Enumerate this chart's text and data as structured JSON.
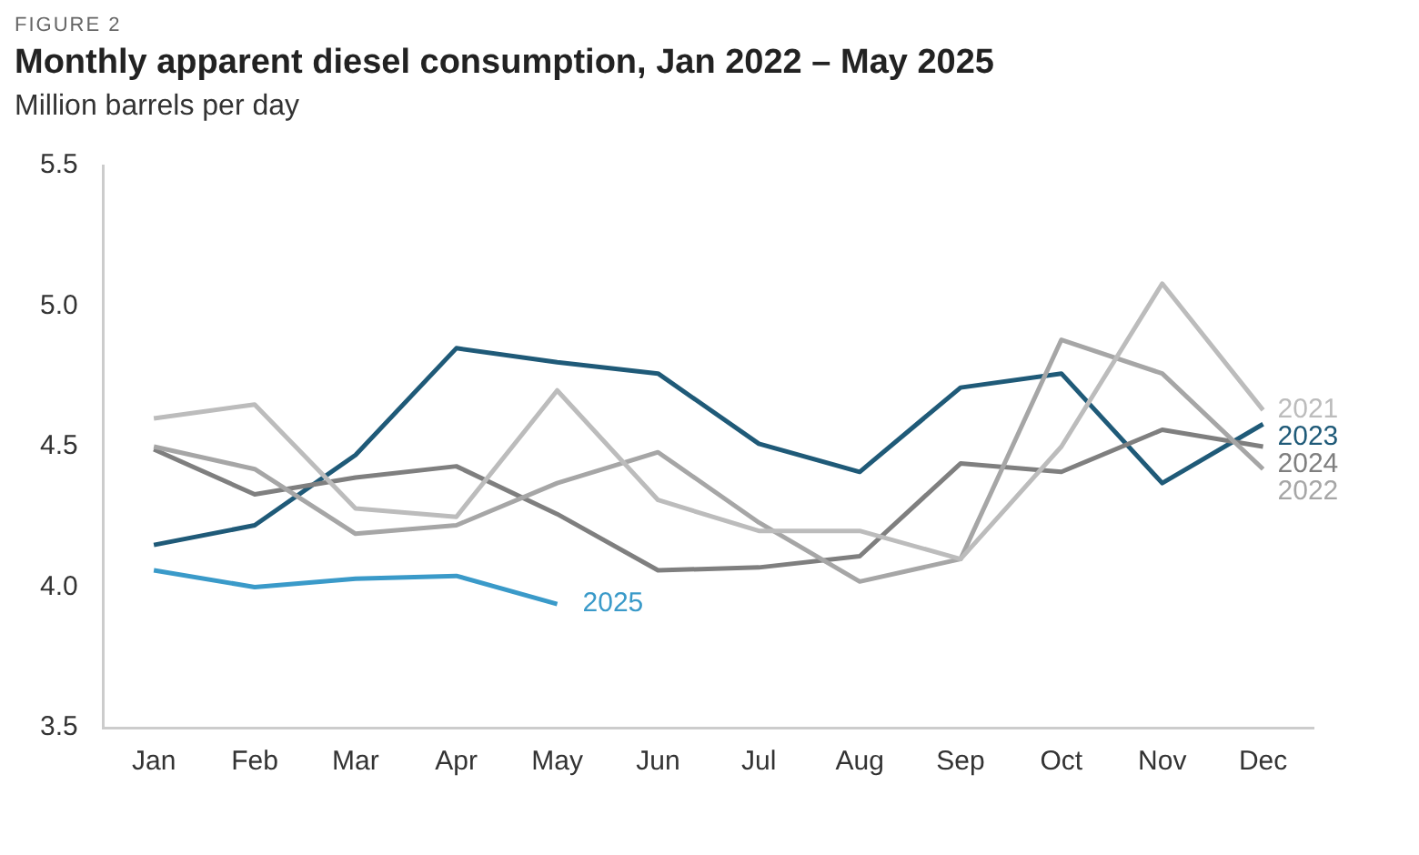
{
  "chart_data": {
    "type": "line",
    "title": "Monthly apparent diesel consumption, Jan 2022 – May 2025",
    "ylabel": "Million barrels per day",
    "annotations": [
      "FIGURE 2"
    ],
    "categories": [
      "Jan",
      "Feb",
      "Mar",
      "Apr",
      "May",
      "Jun",
      "Jul",
      "Aug",
      "Sep",
      "Oct",
      "Nov",
      "Dec"
    ],
    "series": [
      {
        "name": "2021",
        "color": "#bcbcbc",
        "values": [
          4.6,
          4.65,
          4.28,
          4.25,
          4.7,
          4.31,
          4.2,
          4.2,
          4.1,
          4.5,
          5.08,
          4.63
        ]
      },
      {
        "name": "2022",
        "color": "#a6a6a6",
        "values": [
          4.5,
          4.42,
          4.19,
          4.22,
          4.37,
          4.48,
          4.23,
          4.02,
          4.1,
          4.88,
          4.76,
          4.42
        ]
      },
      {
        "name": "2024",
        "color": "#7f7f7f",
        "values": [
          4.49,
          4.33,
          4.39,
          4.43,
          4.26,
          4.06,
          4.07,
          4.11,
          4.44,
          4.41,
          4.56,
          4.5
        ]
      },
      {
        "name": "2023",
        "color": "#1f5a78",
        "values": [
          4.15,
          4.22,
          4.47,
          4.85,
          4.8,
          4.76,
          4.51,
          4.41,
          4.71,
          4.76,
          4.37,
          4.58
        ]
      },
      {
        "name": "2025",
        "color": "#3a9ac9",
        "values": [
          4.06,
          4.0,
          4.03,
          4.04,
          3.94,
          null,
          null,
          null,
          null,
          null,
          null,
          null
        ]
      }
    ],
    "ylim": [
      3.5,
      5.5
    ],
    "yticks": [
      {
        "value": 3.5,
        "label": "3.5"
      },
      {
        "value": 4,
        "label": "4.0"
      },
      {
        "value": 4.5,
        "label": "4.5"
      },
      {
        "value": 5,
        "label": "5.0"
      },
      {
        "value": 5.5,
        "label": "5.5"
      }
    ],
    "grid": false,
    "legend": false,
    "marker": "none",
    "line_style": "solid"
  }
}
